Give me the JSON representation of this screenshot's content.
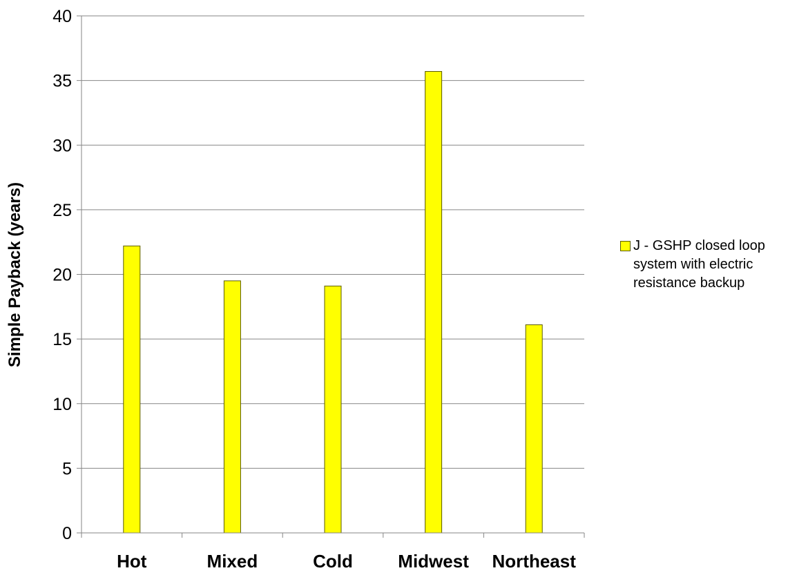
{
  "chart_data": {
    "type": "bar",
    "title": "",
    "xlabel": "",
    "ylabel": "Simple Payback (years)",
    "ylim": [
      0,
      40
    ],
    "yticks": [
      0,
      5,
      10,
      15,
      20,
      25,
      30,
      35,
      40
    ],
    "categories": [
      "Hot",
      "Mixed",
      "Cold",
      "Midwest",
      "Northeast"
    ],
    "series": [
      {
        "name": "J - GSHP closed loop system with electric resistance backup",
        "values": [
          22.2,
          19.5,
          19.1,
          35.7,
          16.1
        ]
      }
    ],
    "grid": true,
    "legend": "right",
    "colors": {
      "bar_fill": "#ffff00",
      "bar_stroke": "#5a5a00",
      "grid": "#868686",
      "axis": "#868686"
    }
  }
}
